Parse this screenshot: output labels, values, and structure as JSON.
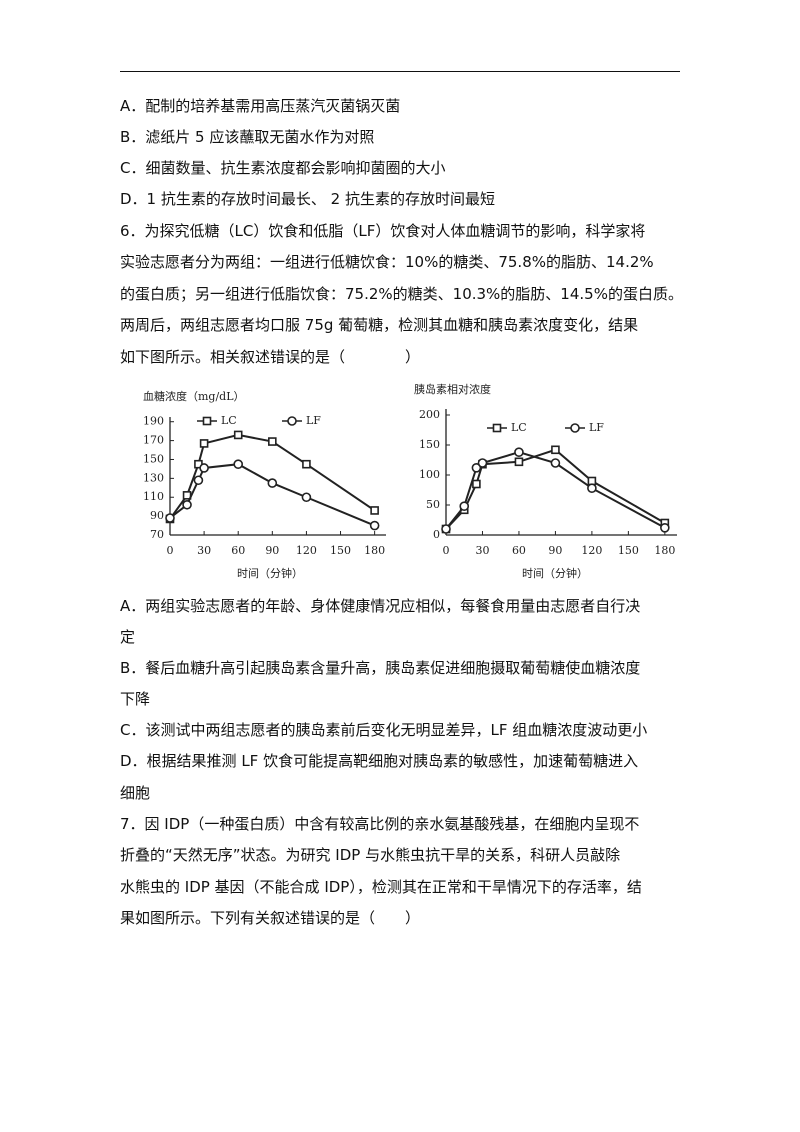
{
  "paragraphs": [
    [
      "A．配制的培养基需用高压蒸汽灭菌锅灭菌"
    ],
    [
      "B．滤纸片 5 应该蘸取无菌水作为对照"
    ],
    [
      "C．细菌数量、抗生素浓度都会影响抑菌圈的大小"
    ],
    [
      "D．1 抗生素的存放时间最长、 2 抗生素的存放时间最短"
    ],
    [
      "6．为探究低糖（LC）饮食和低脂（LF）饮食对人体血糖调节的影响，科学家将",
      "实验志愿者分为两组：一组进行低糖饮食：10%的糖类、75.8%的脂肪、14.2%",
      "的蛋白质；另一组进行低脂饮食：75.2%的糖类、10.3%的脂肪、14.5%的蛋白质。",
      "两周后，两组志愿者均口服 75g 葡萄糖，检测其血糖和胰岛素浓度变化，结果",
      "如下图所示。相关叙述错误的是（　　　　）"
    ],
    [
      "A．两组实验志愿者的年龄、身体健康情况应相似，每餐食用量由志愿者自行决",
      "定"
    ],
    [
      "B．餐后血糖升高引起胰岛素含量升高，胰岛素促进细胞摄取葡萄糖使血糖浓度",
      "下降"
    ],
    [
      "C．该测试中两组志愿者的胰岛素前后变化无明显差异，LF 组血糖浓度波动更小"
    ],
    [
      "D．根据结果推测 LF 饮食可能提高靶细胞对胰岛素的敏感性，加速葡萄糖进入",
      "细胞"
    ],
    [
      "7．因 IDP（一种蛋白质）中含有较高比例的亲水氨基酸残基，在细胞内呈现不",
      "折叠的“天然无序”状态。为研究 IDP 与水熊虫抗干旱的关系，科研人员敲除",
      "水熊虫的 IDP 基因（不能合成 IDP），检测其在正常和干旱情况下的存活率，结",
      "果如图所示。下列有关叙述错误的是（　　）"
    ]
  ],
  "chart_data": [
    {
      "type": "line",
      "title": "血糖浓度（mg/dL）",
      "x_label": "时间（分钟）",
      "x": [
        0,
        15,
        25,
        30,
        60,
        90,
        120,
        180
      ],
      "series": [
        {
          "name": "LC",
          "marker": "square",
          "color": "#222",
          "values": [
            87,
            112,
            145,
            167,
            176,
            169,
            145,
            96
          ]
        },
        {
          "name": "LF",
          "marker": "circle",
          "color": "#222",
          "values": [
            88,
            102,
            128,
            141,
            145,
            125,
            110,
            80
          ]
        }
      ],
      "xlim": [
        0,
        190
      ],
      "xticks": [
        0,
        30,
        60,
        90,
        120,
        150,
        180
      ],
      "ylim": [
        70,
        195
      ],
      "yticks": [
        70,
        90,
        110,
        130,
        150,
        170,
        190
      ]
    },
    {
      "type": "line",
      "title": "胰岛素相对浓度",
      "x_label": "时间（分钟）",
      "x": [
        0,
        15,
        25,
        30,
        60,
        90,
        120,
        180
      ],
      "series": [
        {
          "name": "LC",
          "marker": "square",
          "color": "#222",
          "values": [
            10,
            42,
            85,
            118,
            122,
            142,
            90,
            20
          ]
        },
        {
          "name": "LF",
          "marker": "circle",
          "color": "#222",
          "values": [
            10,
            48,
            112,
            120,
            138,
            120,
            78,
            12
          ]
        }
      ],
      "xlim": [
        0,
        190
      ],
      "xticks": [
        0,
        30,
        60,
        90,
        120,
        150,
        180
      ],
      "ylim": [
        0,
        210
      ],
      "yticks": [
        0,
        50,
        100,
        150,
        200
      ]
    }
  ]
}
